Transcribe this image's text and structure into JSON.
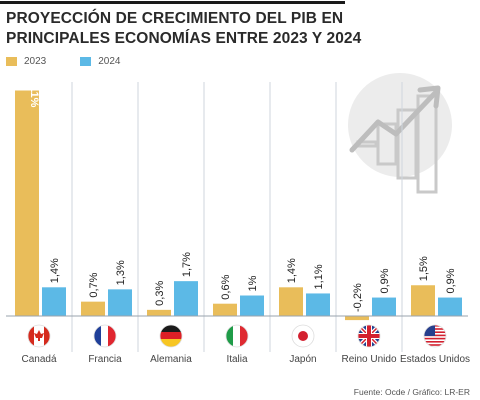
{
  "title_line1": "PROYECCIÓN DE CRECIMIENTO DEL PIB EN",
  "title_line2": "PRINCIPALES ECONOMÍAS ENTRE 2023 Y 2024",
  "source": "Fuente: Ocde / Gráfico: LR-ER",
  "colors": {
    "2023": "#e9bd5a",
    "2024": "#5cb9e6",
    "divider": "#cfd6de"
  },
  "chart_data": {
    "type": "bar",
    "categories": [
      "Canadá",
      "Francia",
      "Alemania",
      "Italia",
      "Japón",
      "Reino Unido",
      "Estados Unidos"
    ],
    "series": [
      {
        "name": "2023",
        "values": [
          11,
          0.7,
          0.3,
          0.6,
          1.4,
          -0.2,
          1.5
        ],
        "labels": [
          "11%",
          "0,7%",
          "0,3%",
          "0,6%",
          "1,4%",
          "-0,2%",
          "1,5%"
        ]
      },
      {
        "name": "2024",
        "values": [
          1.4,
          1.3,
          1.7,
          1,
          1.1,
          0.9,
          0.9
        ],
        "labels": [
          "1,4%",
          "1,3%",
          "1,7%",
          "1%",
          "1,1%",
          "0,9%",
          "0,9%"
        ]
      }
    ],
    "ylim": [
      -0.2,
      11
    ],
    "legend": "top-left",
    "grid": false
  },
  "flags": [
    "canada-flag-icon",
    "france-flag-icon",
    "germany-flag-icon",
    "italy-flag-icon",
    "japan-flag-icon",
    "uk-flag-icon",
    "usa-flag-icon"
  ],
  "decor_icon": "growth-chart-icon"
}
